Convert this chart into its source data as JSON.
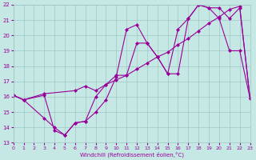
{
  "bg_color": "#c5e8e5",
  "grid_color": "#9ec8c5",
  "line_color": "#990099",
  "xlabel": "Windchill (Refroidissement éolien,°C)",
  "xlim": [
    0,
    23
  ],
  "ylim": [
    13,
    22
  ],
  "xticks": [
    0,
    1,
    2,
    3,
    4,
    5,
    6,
    7,
    8,
    9,
    10,
    11,
    12,
    13,
    14,
    15,
    16,
    17,
    18,
    19,
    20,
    21,
    22,
    23
  ],
  "yticks": [
    13,
    14,
    15,
    16,
    17,
    18,
    19,
    20,
    21,
    22
  ],
  "series": [
    {
      "x": [
        0,
        1,
        3,
        4,
        5,
        6,
        7,
        8,
        9,
        10,
        11,
        12,
        13,
        14,
        15,
        16,
        17,
        18,
        19,
        20,
        21,
        22,
        23
      ],
      "y": [
        16.1,
        15.8,
        14.6,
        14.0,
        13.5,
        14.3,
        14.4,
        15.0,
        15.8,
        17.3,
        20.4,
        20.7,
        19.5,
        18.6,
        17.5,
        20.4,
        21.1,
        22.0,
        21.8,
        21.1,
        19.0,
        19.0,
        15.9
      ]
    },
    {
      "x": [
        0,
        1,
        3,
        4,
        5,
        6,
        7,
        8,
        9,
        10,
        11,
        12,
        13,
        14,
        15,
        16,
        17,
        18,
        19,
        20,
        21,
        22,
        23
      ],
      "y": [
        16.1,
        15.8,
        16.1,
        13.8,
        13.5,
        14.3,
        14.4,
        16.0,
        16.8,
        17.4,
        17.4,
        19.5,
        19.5,
        18.6,
        17.5,
        17.5,
        21.1,
        22.0,
        21.8,
        21.8,
        21.1,
        21.8,
        15.9
      ]
    },
    {
      "x": [
        0,
        1,
        3,
        6,
        7,
        8,
        9,
        10,
        11,
        12,
        13,
        14,
        15,
        16,
        17,
        18,
        19,
        20,
        21,
        22,
        23
      ],
      "y": [
        16.1,
        15.8,
        16.2,
        16.4,
        16.7,
        16.4,
        16.8,
        17.1,
        17.4,
        17.8,
        18.2,
        18.6,
        18.9,
        19.4,
        19.8,
        20.3,
        20.8,
        21.2,
        21.7,
        21.9,
        15.9
      ]
    }
  ]
}
